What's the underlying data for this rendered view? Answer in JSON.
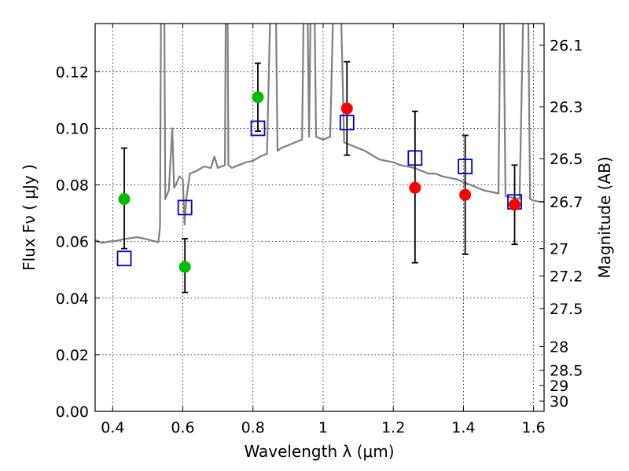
{
  "chart_data": {
    "type": "scatter",
    "xlabel": "Wavelength  λ (μm)",
    "ylabel": "Flux  Fν  ( μJy )",
    "y2label": "Magnitude (AB)",
    "xlim": [
      0.35,
      1.63
    ],
    "ylim": [
      0.0,
      0.137
    ],
    "grid": true,
    "x_ticks": [
      0.4,
      0.6,
      0.8,
      1.0,
      1.2,
      1.4,
      1.6
    ],
    "x_tick_labels": [
      "0.4",
      "0.6",
      "0.8",
      "1",
      "1.2",
      "1.4",
      "1.6"
    ],
    "y_ticks": [
      0.0,
      0.02,
      0.04,
      0.06,
      0.08,
      0.1,
      0.12
    ],
    "y_tick_labels": [
      "0.00",
      "0.02",
      "0.04",
      "0.06",
      "0.08",
      "0.10",
      "0.12"
    ],
    "y2_ticks": [
      {
        "flux": 0.1294,
        "label": "26.1"
      },
      {
        "flux": 0.1076,
        "label": "26.3"
      },
      {
        "flux": 0.0893,
        "label": "26.5"
      },
      {
        "flux": 0.0741,
        "label": "26.7"
      },
      {
        "flux": 0.0575,
        "label": "27"
      },
      {
        "flux": 0.0478,
        "label": "27.2"
      },
      {
        "flux": 0.0363,
        "label": "27.5"
      },
      {
        "flux": 0.0229,
        "label": "28"
      },
      {
        "flux": 0.0145,
        "label": "28.5"
      },
      {
        "flux": 0.0091,
        "label": "29"
      },
      {
        "flux": 0.0036,
        "label": "30"
      }
    ],
    "series": [
      {
        "kind": "spectrum",
        "color": "#808080",
        "points": [
          [
            0.35,
            0.0605
          ],
          [
            0.37,
            0.0595
          ],
          [
            0.39,
            0.06
          ],
          [
            0.41,
            0.0602
          ],
          [
            0.43,
            0.0608
          ],
          [
            0.45,
            0.0612
          ],
          [
            0.47,
            0.0615
          ],
          [
            0.49,
            0.061
          ],
          [
            0.51,
            0.0604
          ],
          [
            0.53,
            0.0598
          ],
          [
            0.535,
            0.065
          ],
          [
            0.54,
            0.2
          ],
          [
            0.545,
            0.2
          ],
          [
            0.55,
            0.075
          ],
          [
            0.56,
            0.078
          ],
          [
            0.57,
            0.1
          ],
          [
            0.575,
            0.079
          ],
          [
            0.58,
            0.08
          ],
          [
            0.59,
            0.083
          ],
          [
            0.6,
            0.082
          ],
          [
            0.605,
            0.066
          ],
          [
            0.61,
            0.075
          ],
          [
            0.62,
            0.084
          ],
          [
            0.64,
            0.085
          ],
          [
            0.66,
            0.0865
          ],
          [
            0.68,
            0.086
          ],
          [
            0.69,
            0.09
          ],
          [
            0.7,
            0.086
          ],
          [
            0.72,
            0.087
          ],
          [
            0.725,
            0.2
          ],
          [
            0.73,
            0.087
          ],
          [
            0.74,
            0.086
          ],
          [
            0.76,
            0.087
          ],
          [
            0.78,
            0.088
          ],
          [
            0.8,
            0.0885
          ],
          [
            0.82,
            0.09
          ],
          [
            0.84,
            0.091
          ],
          [
            0.86,
            0.2
          ],
          [
            0.87,
            0.092
          ],
          [
            0.88,
            0.093
          ],
          [
            0.9,
            0.094
          ],
          [
            0.92,
            0.095
          ],
          [
            0.94,
            0.096
          ],
          [
            0.95,
            0.2
          ],
          [
            0.96,
            0.097
          ],
          [
            0.97,
            0.2
          ],
          [
            0.98,
            0.097
          ],
          [
            1.0,
            0.096
          ],
          [
            1.02,
            0.097
          ],
          [
            1.04,
            0.2
          ],
          [
            1.06,
            0.095
          ],
          [
            1.08,
            0.094
          ],
          [
            1.1,
            0.093
          ],
          [
            1.12,
            0.092
          ],
          [
            1.14,
            0.0905
          ],
          [
            1.16,
            0.089
          ],
          [
            1.18,
            0.0885
          ],
          [
            1.2,
            0.088
          ],
          [
            1.22,
            0.087
          ],
          [
            1.24,
            0.0865
          ],
          [
            1.26,
            0.086
          ],
          [
            1.28,
            0.085
          ],
          [
            1.3,
            0.084
          ],
          [
            1.32,
            0.084
          ],
          [
            1.34,
            0.083
          ],
          [
            1.36,
            0.0825
          ],
          [
            1.38,
            0.082
          ],
          [
            1.4,
            0.081
          ],
          [
            1.42,
            0.08
          ],
          [
            1.44,
            0.079
          ],
          [
            1.46,
            0.078
          ],
          [
            1.48,
            0.0775
          ],
          [
            1.5,
            0.077
          ],
          [
            1.51,
            0.2
          ],
          [
            1.52,
            0.076
          ],
          [
            1.54,
            0.0755
          ],
          [
            1.56,
            0.075
          ],
          [
            1.58,
            0.2
          ],
          [
            1.59,
            0.075
          ],
          [
            1.6,
            0.0745
          ],
          [
            1.62,
            0.074
          ],
          [
            1.63,
            0.074
          ]
        ]
      },
      {
        "kind": "model",
        "color": "#0000cc",
        "points": [
          [
            0.433,
            0.054
          ],
          [
            0.606,
            0.072
          ],
          [
            0.814,
            0.1
          ],
          [
            1.068,
            0.102
          ],
          [
            1.262,
            0.0895
          ],
          [
            1.405,
            0.0865
          ],
          [
            1.546,
            0.074
          ]
        ]
      },
      {
        "kind": "observed",
        "points": [
          {
            "x": 0.433,
            "y": 0.075,
            "err": [
              0.0575,
              0.093
            ],
            "color": "#00bb00"
          },
          {
            "x": 0.606,
            "y": 0.051,
            "err": [
              0.042,
              0.061
            ],
            "color": "#00bb00"
          },
          {
            "x": 0.814,
            "y": 0.111,
            "err": [
              0.099,
              0.123
            ],
            "color": "#00bb00"
          },
          {
            "x": 1.068,
            "y": 0.107,
            "err": [
              0.0905,
              0.1235
            ],
            "color": "#ff0000"
          },
          {
            "x": 1.262,
            "y": 0.079,
            "err": [
              0.0525,
              0.106
            ],
            "color": "#ff0000"
          },
          {
            "x": 1.405,
            "y": 0.0765,
            "err": [
              0.0555,
              0.0975
            ],
            "color": "#ff0000"
          },
          {
            "x": 1.546,
            "y": 0.073,
            "err": [
              0.059,
              0.087
            ],
            "color": "#ff0000"
          }
        ]
      }
    ]
  }
}
